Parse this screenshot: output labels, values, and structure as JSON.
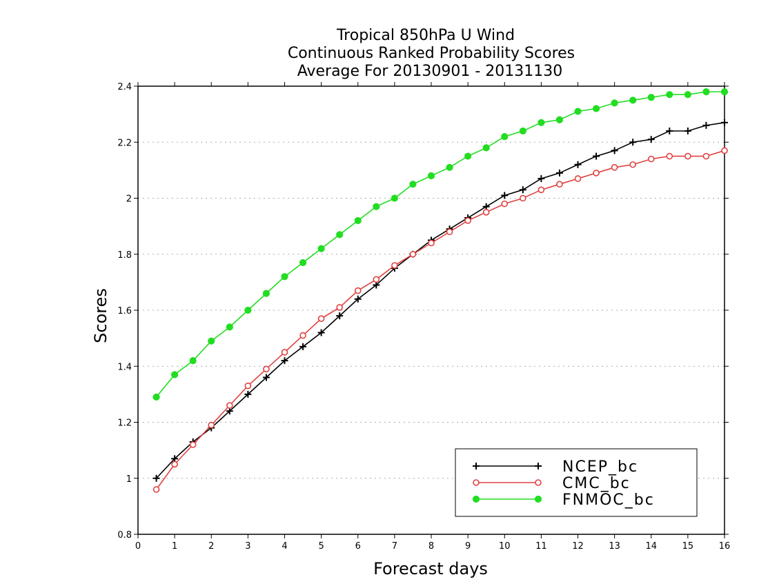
{
  "chart_data": {
    "type": "line",
    "title": [
      "Tropical 850hPa U Wind",
      "Continuous Ranked Probability Scores",
      "Average For 20130901 - 20131130"
    ],
    "xlabel": "Forecast days",
    "ylabel": "Scores",
    "xlim": [
      0,
      16
    ],
    "ylim": [
      0.8,
      2.4
    ],
    "x_ticks": [
      0,
      1,
      2,
      3,
      4,
      5,
      6,
      7,
      8,
      9,
      10,
      11,
      12,
      13,
      14,
      15,
      16
    ],
    "y_ticks": [
      0.8,
      1,
      1.2,
      1.4,
      1.6,
      1.8,
      2,
      2.2,
      2.4
    ],
    "y_tick_labels": [
      "0.8",
      "1",
      "1.2",
      "1.4",
      "1.6",
      "1.8",
      "2",
      "2.2",
      "2.4"
    ],
    "grid": "horizontal dotted",
    "legend_position": "bottom-right",
    "x": [
      0.5,
      1,
      1.5,
      2,
      2.5,
      3,
      3.5,
      4,
      4.5,
      5,
      5.5,
      6,
      6.5,
      7,
      7.5,
      8,
      8.5,
      9,
      9.5,
      10,
      10.5,
      11,
      11.5,
      12,
      12.5,
      13,
      13.5,
      14,
      14.5,
      15,
      15.5,
      16
    ],
    "series": [
      {
        "name": "NCEP_bc",
        "color": "#000000",
        "marker": "plus",
        "values": [
          1.0,
          1.07,
          1.13,
          1.18,
          1.24,
          1.3,
          1.36,
          1.42,
          1.47,
          1.52,
          1.58,
          1.64,
          1.69,
          1.75,
          1.8,
          1.85,
          1.89,
          1.93,
          1.97,
          2.01,
          2.03,
          2.07,
          2.09,
          2.12,
          2.15,
          2.17,
          2.2,
          2.21,
          2.24,
          2.24,
          2.26,
          2.27
        ]
      },
      {
        "name": "CMC_bc",
        "color": "#e04040",
        "marker": "open-circle",
        "values": [
          0.96,
          1.05,
          1.12,
          1.19,
          1.26,
          1.33,
          1.39,
          1.45,
          1.51,
          1.57,
          1.61,
          1.67,
          1.71,
          1.76,
          1.8,
          1.84,
          1.88,
          1.92,
          1.95,
          1.98,
          2.0,
          2.03,
          2.05,
          2.07,
          2.09,
          2.11,
          2.12,
          2.14,
          2.15,
          2.15,
          2.15,
          2.17
        ]
      },
      {
        "name": "FNMOC_bc",
        "color": "#22dd22",
        "marker": "filled-circle",
        "values": [
          1.29,
          1.37,
          1.42,
          1.49,
          1.54,
          1.6,
          1.66,
          1.72,
          1.77,
          1.82,
          1.87,
          1.92,
          1.97,
          2.0,
          2.05,
          2.08,
          2.11,
          2.15,
          2.18,
          2.22,
          2.24,
          2.27,
          2.28,
          2.31,
          2.32,
          2.34,
          2.35,
          2.36,
          2.37,
          2.37,
          2.38,
          2.38
        ]
      }
    ]
  }
}
